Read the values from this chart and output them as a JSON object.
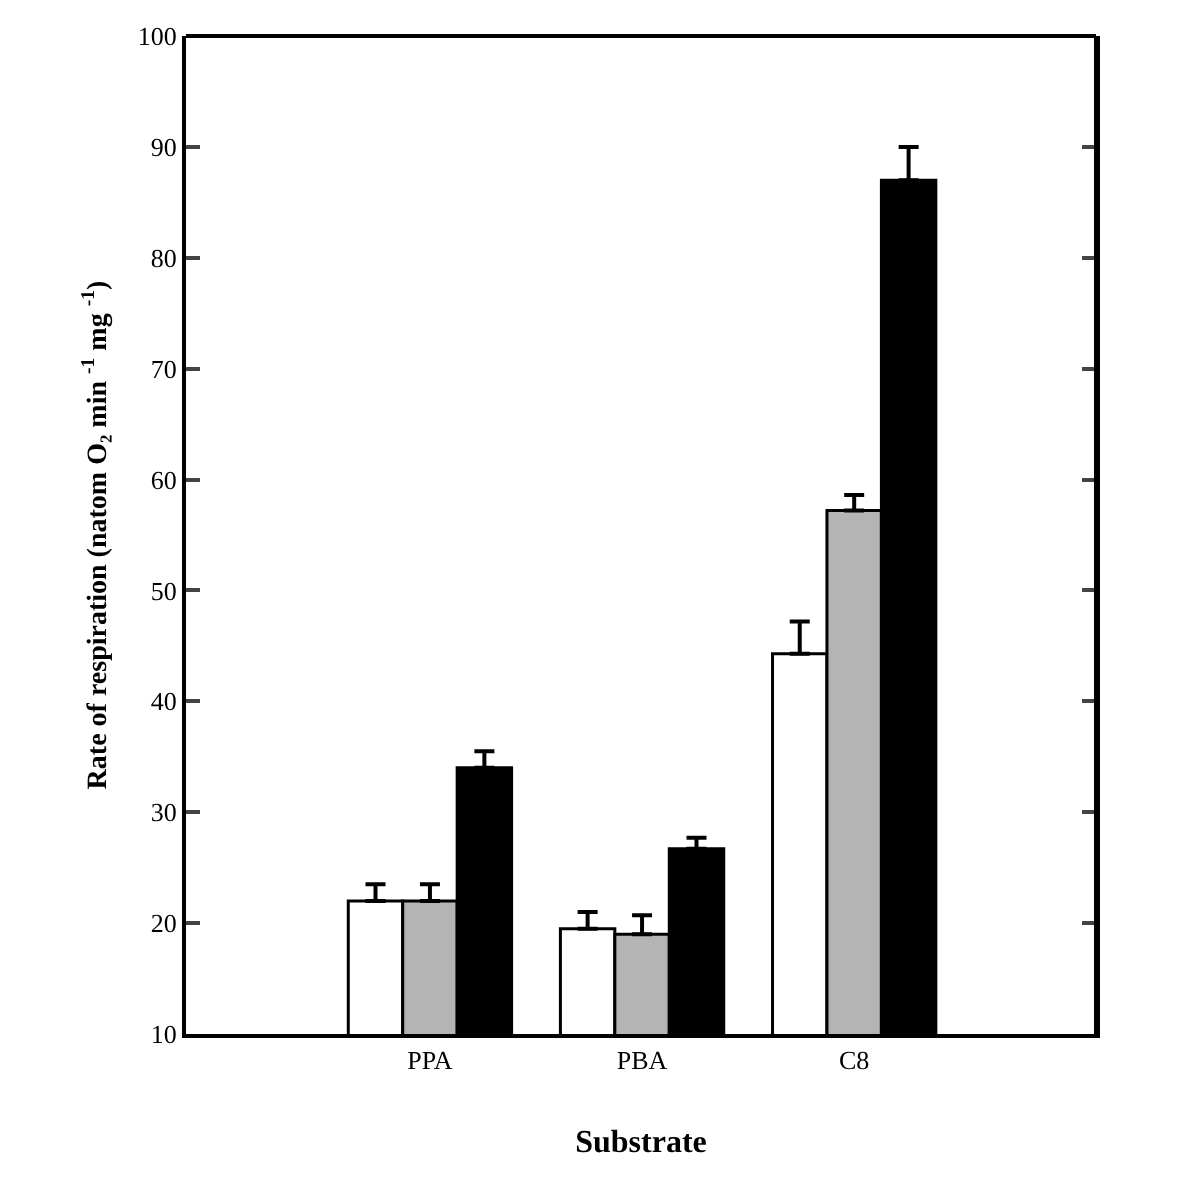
{
  "chart_data": {
    "type": "bar",
    "xlabel": "Substrate",
    "ylabel": "Rate of respiration (natom O₂ min $^{-1}$ mg $^{-1}$)",
    "categories": [
      "PPA",
      "PBA",
      "C8"
    ],
    "series": [
      {
        "color": "#ffffff",
        "values": [
          22,
          19.5,
          44.3
        ],
        "errors": [
          [
            22,
            23.5
          ],
          [
            19.5,
            21
          ],
          [
            44.3,
            47.2
          ]
        ]
      },
      {
        "color": "#b4b4b4",
        "values": [
          22,
          19,
          57.2
        ],
        "errors": [
          [
            22,
            23.5
          ],
          [
            19,
            20.7
          ],
          [
            57.2,
            58.6
          ]
        ]
      },
      {
        "color": "#000000",
        "values": [
          34,
          26.7,
          87
        ],
        "errors": [
          [
            34,
            35.5
          ],
          [
            26.7,
            27.7
          ],
          [
            87,
            90
          ]
        ]
      }
    ],
    "ylim": [
      10,
      100
    ],
    "yticks": [
      10,
      20,
      30,
      40,
      50,
      60,
      70,
      80,
      90,
      100
    ],
    "grid": false
  }
}
